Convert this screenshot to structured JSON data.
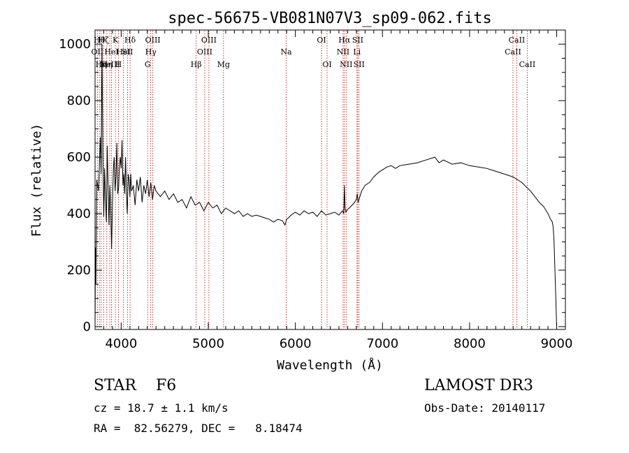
{
  "chart_data": {
    "type": "line",
    "title": "spec-56675-VB081N07V3_sp09-062.fits",
    "xlabel": "Wavelength (Å)",
    "ylabel": "Flux (relative)",
    "xlim": [
      3700,
      9100
    ],
    "ylim": [
      -10,
      1050
    ],
    "xticks": [
      4000,
      5000,
      6000,
      7000,
      8000,
      9000
    ],
    "yticks": [
      0,
      200,
      400,
      600,
      800,
      1000
    ],
    "grid": false,
    "line_color": "#000000",
    "marker_color": "#cc0000",
    "series": [
      {
        "x": [
          3700,
          3705,
          3710,
          3720,
          3740,
          3760,
          3770,
          3780,
          3790,
          3800,
          3810,
          3820,
          3830,
          3840,
          3850,
          3860,
          3870,
          3880,
          3890,
          3900,
          3910,
          3920,
          3930,
          3940,
          3950,
          3960,
          3970,
          3980,
          3990,
          4000,
          4010,
          4020,
          4030,
          4040,
          4050,
          4060,
          4070,
          4080,
          4090,
          4100,
          4110,
          4120,
          4140,
          4160,
          4180,
          4200,
          4220,
          4240,
          4260,
          4280,
          4300,
          4320,
          4340,
          4360,
          4380,
          4400,
          4450,
          4500,
          4550,
          4600,
          4650,
          4700,
          4750,
          4800,
          4850,
          4900,
          4950,
          5000,
          5050,
          5100,
          5150,
          5200,
          5250,
          5300,
          5350,
          5400,
          5450,
          5500,
          5550,
          5600,
          5650,
          5700,
          5750,
          5800,
          5850,
          5880,
          5900,
          5920,
          5950,
          6000,
          6050,
          6100,
          6150,
          6200,
          6250,
          6300,
          6350,
          6400,
          6450,
          6500,
          6540,
          6555,
          6563,
          6570,
          6580,
          6600,
          6620,
          6650,
          6680,
          6700,
          6710,
          6720,
          6740,
          6760,
          6780,
          6800,
          6850,
          6900,
          6950,
          7000,
          7050,
          7100,
          7150,
          7200,
          7300,
          7400,
          7500,
          7600,
          7650,
          7700,
          7800,
          7900,
          8000,
          8100,
          8200,
          8300,
          8400,
          8500,
          8550,
          8600,
          8650,
          8700,
          8750,
          8800,
          8850,
          8900,
          8930,
          8950,
          8960,
          8970,
          8980,
          8990,
          9000
        ],
        "y": [
          0,
          280,
          150,
          520,
          480,
          670,
          540,
          1000,
          600,
          390,
          560,
          450,
          370,
          640,
          500,
          360,
          500,
          420,
          275,
          430,
          560,
          600,
          480,
          530,
          650,
          470,
          490,
          570,
          600,
          560,
          660,
          500,
          540,
          470,
          600,
          470,
          400,
          540,
          520,
          460,
          540,
          480,
          500,
          430,
          520,
          480,
          530,
          440,
          500,
          470,
          520,
          460,
          510,
          450,
          500,
          480,
          460,
          480,
          450,
          470,
          440,
          450,
          420,
          460,
          430,
          440,
          410,
          440,
          420,
          430,
          400,
          420,
          410,
          400,
          410,
          390,
          400,
          390,
          395,
          390,
          385,
          380,
          370,
          380,
          375,
          360,
          380,
          385,
          395,
          405,
          395,
          410,
          400,
          405,
          390,
          410,
          395,
          400,
          405,
          395,
          410,
          400,
          500,
          420,
          405,
          415,
          420,
          430,
          440,
          450,
          470,
          440,
          460,
          480,
          490,
          500,
          510,
          530,
          545,
          555,
          565,
          570,
          560,
          570,
          575,
          580,
          590,
          600,
          580,
          590,
          575,
          580,
          570,
          565,
          560,
          550,
          540,
          530,
          520,
          510,
          495,
          480,
          460,
          440,
          425,
          400,
          380,
          370,
          350,
          300,
          200,
          100,
          0
        ]
      }
    ],
    "lines": [
      {
        "x": 3727,
        "labels": [
          "OII"
        ],
        "rows": [
          2
        ]
      },
      {
        "x": 3750,
        "labels": [
          "Hθ"
        ],
        "rows": [
          1
        ]
      },
      {
        "x": 3770,
        "labels": [
          "Hη"
        ],
        "rows": [
          3
        ]
      },
      {
        "x": 3798,
        "labels": [
          "Hζ"
        ],
        "rows": [
          1
        ]
      },
      {
        "x": 3835,
        "labels": [
          "Hη"
        ],
        "rows": [
          3
        ]
      },
      {
        "x": 3869,
        "labels": [
          "NeIII"
        ],
        "rows": [
          3
        ]
      },
      {
        "x": 3889,
        "labels": [
          "HeI"
        ],
        "rows": [
          2
        ]
      },
      {
        "x": 3934,
        "labels": [
          "K"
        ],
        "rows": [
          1
        ]
      },
      {
        "x": 3968,
        "labels": [
          "H"
        ],
        "rows": [
          3
        ]
      },
      {
        "x": 4026,
        "labels": [
          "HeI"
        ],
        "rows": [
          2
        ]
      },
      {
        "x": 4072,
        "labels": [
          "SII"
        ],
        "rows": [
          2
        ]
      },
      {
        "x": 4102,
        "labels": [
          "Hδ"
        ],
        "rows": [
          1
        ]
      },
      {
        "x": 4304,
        "labels": [
          "G"
        ],
        "rows": [
          3
        ]
      },
      {
        "x": 4340,
        "labels": [
          "Hγ"
        ],
        "rows": [
          2
        ]
      },
      {
        "x": 4363,
        "labels": [
          "OIII"
        ],
        "rows": [
          1
        ]
      },
      {
        "x": 4861,
        "labels": [
          "Hβ"
        ],
        "rows": [
          3
        ]
      },
      {
        "x": 4959,
        "labels": [
          "OIII"
        ],
        "rows": [
          2
        ]
      },
      {
        "x": 5007,
        "labels": [
          "OIII"
        ],
        "rows": [
          1
        ]
      },
      {
        "x": 5175,
        "labels": [
          "Mg"
        ],
        "rows": [
          3
        ]
      },
      {
        "x": 5894,
        "labels": [
          "Na"
        ],
        "rows": [
          2
        ]
      },
      {
        "x": 6300,
        "labels": [
          "OI"
        ],
        "rows": [
          1
        ]
      },
      {
        "x": 6364,
        "labels": [
          "OI"
        ],
        "rows": [
          3
        ]
      },
      {
        "x": 6548,
        "labels": [
          "NII"
        ],
        "rows": [
          2
        ]
      },
      {
        "x": 6563,
        "labels": [
          "Hα"
        ],
        "rows": [
          1
        ]
      },
      {
        "x": 6583,
        "labels": [
          "NII"
        ],
        "rows": [
          3
        ]
      },
      {
        "x": 6707,
        "labels": [
          "Li"
        ],
        "rows": [
          2
        ]
      },
      {
        "x": 6716,
        "labels": [
          "SII"
        ],
        "rows": [
          1
        ]
      },
      {
        "x": 6731,
        "labels": [
          "SII"
        ],
        "rows": [
          3
        ]
      },
      {
        "x": 8498,
        "labels": [
          "CaII"
        ],
        "rows": [
          2
        ]
      },
      {
        "x": 8542,
        "labels": [
          "CaII"
        ],
        "rows": [
          1
        ]
      },
      {
        "x": 8662,
        "labels": [
          "CaII"
        ],
        "rows": [
          3
        ]
      }
    ]
  },
  "info": {
    "object_line": "STAR    F6",
    "survey": "LAMOST DR3",
    "cz": "cz = 18.7 ± 1.1 km/s",
    "obs_date": "Obs-Date: 20140117",
    "coords": "RA =  82.56279, DEC =   8.18474"
  }
}
